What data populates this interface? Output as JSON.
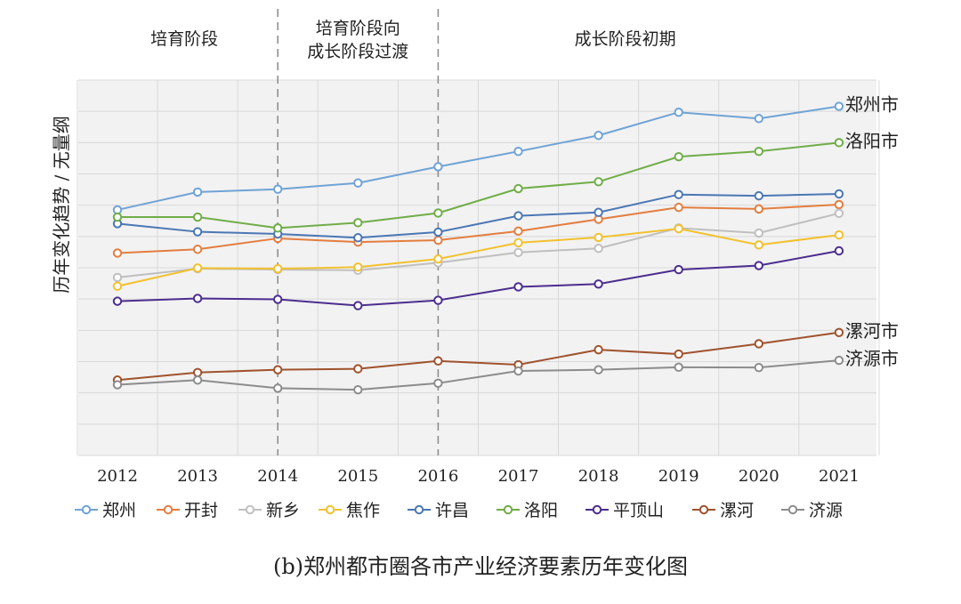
{
  "chart_data": {
    "type": "line",
    "caption": "(b)郑州都市圈各市产业经济要素历年变化图",
    "ylabel": "历年变化趋势 / 无量纲",
    "phases": [
      "培育阶段",
      "培育阶段向\n成长阶段过渡",
      "成长阶段初期"
    ],
    "x": [
      "2012",
      "2013",
      "2014",
      "2015",
      "2016",
      "2017",
      "2018",
      "2019",
      "2020",
      "2021"
    ],
    "ylim": [
      0,
      12
    ],
    "grid": true,
    "legend_position": "bottom",
    "series": [
      {
        "name": "郑州",
        "color": "#6fa3d6",
        "values": [
          7.85,
          8.42,
          8.51,
          8.71,
          9.23,
          9.72,
          10.23,
          10.97,
          10.77,
          11.16
        ]
      },
      {
        "name": "开封",
        "color": "#e47d3f",
        "values": [
          6.47,
          6.59,
          6.94,
          6.82,
          6.88,
          7.17,
          7.55,
          7.93,
          7.88,
          8.02
        ]
      },
      {
        "name": "新乡",
        "color": "#bfbfbf",
        "values": [
          5.69,
          5.97,
          5.94,
          5.92,
          6.16,
          6.49,
          6.62,
          7.27,
          7.11,
          7.74
        ]
      },
      {
        "name": "焦作",
        "color": "#f2c12e",
        "values": [
          5.41,
          5.99,
          5.97,
          6.02,
          6.28,
          6.8,
          6.97,
          7.25,
          6.73,
          7.05
        ]
      },
      {
        "name": "许昌",
        "color": "#4a77b4",
        "values": [
          7.41,
          7.15,
          7.08,
          6.96,
          7.14,
          7.66,
          7.77,
          8.34,
          8.3,
          8.36
        ]
      },
      {
        "name": "洛阳",
        "color": "#70ad47",
        "values": [
          7.62,
          7.62,
          7.27,
          7.44,
          7.75,
          8.53,
          8.75,
          9.55,
          9.72,
          10.0
        ]
      },
      {
        "name": "平顶山",
        "color": "#4b2d8f",
        "values": [
          4.93,
          5.02,
          4.99,
          4.79,
          4.96,
          5.39,
          5.48,
          5.94,
          6.07,
          6.54
        ]
      },
      {
        "name": "漯河",
        "color": "#a0522d",
        "values": [
          2.41,
          2.65,
          2.74,
          2.77,
          3.02,
          2.9,
          3.38,
          3.24,
          3.57,
          3.93
        ]
      },
      {
        "name": "济源",
        "color": "#8c8c8c",
        "values": [
          2.26,
          2.41,
          2.15,
          2.1,
          2.31,
          2.7,
          2.74,
          2.82,
          2.81,
          3.04
        ]
      }
    ],
    "end_labels": [
      {
        "text": "郑州市",
        "series": 0
      },
      {
        "text": "洛阳市",
        "series": 5
      },
      {
        "text": "漯河市",
        "series": 7
      },
      {
        "text": "济源市",
        "series": 8
      }
    ]
  }
}
